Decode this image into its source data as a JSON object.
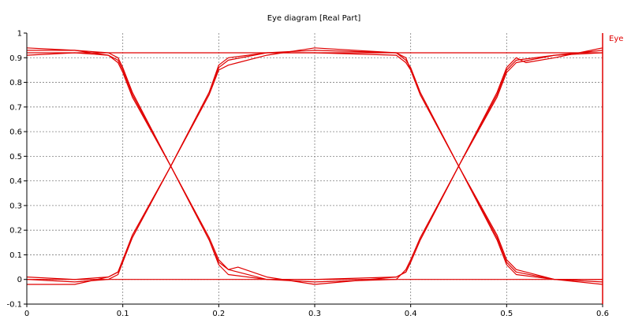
{
  "chart_data": {
    "type": "line",
    "title": "Eye diagram [Real Part]",
    "xlabel": "",
    "ylabel": "",
    "xlim": [
      0,
      0.6
    ],
    "ylim": [
      -0.1,
      1
    ],
    "x_ticks": [
      "0",
      "0.1",
      "0.2",
      "0.3",
      "0.4",
      "0.5",
      "0.6"
    ],
    "y_ticks": [
      "-0.1",
      "0",
      "0.1",
      "0.2",
      "0.3",
      "0.4",
      "0.5",
      "0.6",
      "0.7",
      "0.8",
      "0.9",
      "1"
    ],
    "grid": true,
    "legend": {
      "position": "top-right",
      "entries": [
        "Eye"
      ]
    },
    "colors": {
      "trace": "#e00000",
      "grid": "#808080",
      "axis": "#000000"
    },
    "eye": {
      "high_level": 0.92,
      "low_level": 0.0,
      "crossing_level": 0.46,
      "crossing_x": [
        0.15,
        0.45
      ],
      "transition_start_x": [
        0.1,
        0.4
      ],
      "transition_end_x": [
        0.2,
        0.5
      ]
    },
    "series": [
      {
        "x": [
          0,
          0.05,
          0.085,
          0.095,
          0.1,
          0.11,
          0.15,
          0.19,
          0.2,
          0.21,
          0.25,
          0.3,
          0.385,
          0.395,
          0.4,
          0.41,
          0.45,
          0.49,
          0.5,
          0.51,
          0.55,
          0.6
        ],
        "y": [
          0.93,
          0.93,
          0.91,
          0.88,
          0.84,
          0.74,
          0.46,
          0.17,
          0.08,
          0.04,
          0.0,
          -0.01,
          0.0,
          0.04,
          0.08,
          0.17,
          0.46,
          0.74,
          0.84,
          0.88,
          0.91,
          0.93
        ]
      },
      {
        "x": [
          0,
          0.05,
          0.085,
          0.095,
          0.1,
          0.11,
          0.15,
          0.19,
          0.2,
          0.21,
          0.25,
          0.3,
          0.385,
          0.395,
          0.4,
          0.41,
          0.45,
          0.49,
          0.5,
          0.51,
          0.55,
          0.6
        ],
        "y": [
          0.91,
          0.92,
          0.91,
          0.89,
          0.85,
          0.75,
          0.46,
          0.16,
          0.06,
          0.02,
          0.0,
          0.0,
          0.01,
          0.03,
          0.07,
          0.16,
          0.46,
          0.75,
          0.85,
          0.89,
          0.91,
          0.92
        ]
      },
      {
        "x": [
          0,
          0.05,
          0.085,
          0.095,
          0.1,
          0.11,
          0.15,
          0.19,
          0.2,
          0.21,
          0.22,
          0.25,
          0.3,
          0.385,
          0.395,
          0.4,
          0.41,
          0.45,
          0.49,
          0.5,
          0.51,
          0.52,
          0.55,
          0.6
        ],
        "y": [
          0.94,
          0.93,
          0.92,
          0.9,
          0.86,
          0.76,
          0.46,
          0.16,
          0.07,
          0.04,
          0.05,
          0.01,
          -0.02,
          0.01,
          0.03,
          0.07,
          0.16,
          0.46,
          0.76,
          0.86,
          0.9,
          0.88,
          0.9,
          0.94
        ]
      },
      {
        "x": [
          0,
          0.05,
          0.085,
          0.095,
          0.1,
          0.11,
          0.15,
          0.19,
          0.2,
          0.21,
          0.25,
          0.3,
          0.385,
          0.395,
          0.4,
          0.41,
          0.45,
          0.49,
          0.5,
          0.51,
          0.55,
          0.6
        ],
        "y": [
          0.0,
          -0.01,
          0.0,
          0.02,
          0.07,
          0.17,
          0.46,
          0.76,
          0.86,
          0.89,
          0.92,
          0.93,
          0.92,
          0.89,
          0.86,
          0.76,
          0.46,
          0.17,
          0.07,
          0.03,
          0.0,
          -0.01
        ]
      },
      {
        "x": [
          0,
          0.05,
          0.085,
          0.095,
          0.1,
          0.11,
          0.15,
          0.19,
          0.2,
          0.21,
          0.22,
          0.25,
          0.3,
          0.385,
          0.395,
          0.4,
          0.41,
          0.45,
          0.49,
          0.5,
          0.51,
          0.52,
          0.55,
          0.6
        ],
        "y": [
          -0.02,
          -0.02,
          0.01,
          0.03,
          0.08,
          0.18,
          0.46,
          0.75,
          0.85,
          0.87,
          0.88,
          0.91,
          0.94,
          0.92,
          0.9,
          0.85,
          0.75,
          0.46,
          0.18,
          0.08,
          0.04,
          0.03,
          0.0,
          -0.02
        ]
      },
      {
        "x": [
          0,
          0.05,
          0.085,
          0.095,
          0.1,
          0.11,
          0.15,
          0.19,
          0.2,
          0.21,
          0.25,
          0.3,
          0.385,
          0.395,
          0.4,
          0.41,
          0.45,
          0.49,
          0.5,
          0.51,
          0.55,
          0.6
        ],
        "y": [
          0.01,
          0.0,
          0.01,
          0.03,
          0.08,
          0.17,
          0.46,
          0.76,
          0.87,
          0.9,
          0.92,
          0.92,
          0.91,
          0.88,
          0.85,
          0.75,
          0.46,
          0.16,
          0.06,
          0.02,
          0.0,
          0.0
        ]
      },
      {
        "x": [
          0,
          0.6
        ],
        "y": [
          0.92,
          0.92
        ]
      },
      {
        "x": [
          0,
          0.6
        ],
        "y": [
          0.0,
          0.0
        ]
      }
    ]
  }
}
